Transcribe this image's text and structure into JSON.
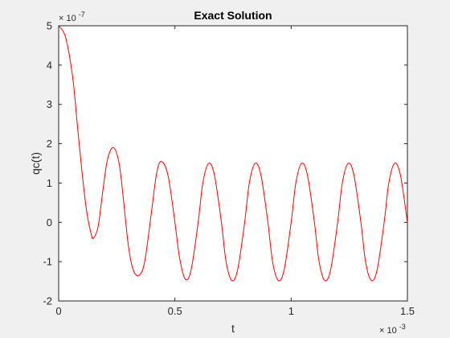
{
  "chart_data": {
    "type": "line",
    "title": "Exact Solution",
    "xlabel": "t",
    "ylabel": "qc(t)",
    "x_multiplier_label": "× 10",
    "x_multiplier_exp": "-3",
    "y_multiplier_label": "× 10",
    "y_multiplier_exp": "-7",
    "xlim": [
      0,
      1.5
    ],
    "ylim": [
      -2,
      5
    ],
    "x_ticks": [
      0,
      0.5,
      1,
      1.5
    ],
    "x_tick_labels": [
      "0",
      "0.5",
      "1",
      "1.5"
    ],
    "y_ticks": [
      -2,
      -1,
      0,
      1,
      2,
      3,
      4,
      5
    ],
    "y_tick_labels": [
      "-2",
      "-1",
      "0",
      "1",
      "2",
      "3",
      "4",
      "5"
    ],
    "grid": false,
    "line_color": "#ff0000",
    "series": [
      {
        "x": [
          0,
          0.03,
          0.06,
          0.08,
          0.1,
          0.12,
          0.14,
          0.15,
          0.17,
          0.19,
          0.21,
          0.235,
          0.26,
          0.28,
          0.3,
          0.32,
          0.345,
          0.37,
          0.4,
          0.42,
          0.44,
          0.47,
          0.5,
          0.52,
          0.545,
          0.57,
          0.6,
          0.62,
          0.645,
          0.67,
          0.7,
          0.72,
          0.745,
          0.77,
          0.8,
          0.82,
          0.845,
          0.87,
          0.9,
          0.92,
          0.945,
          0.97,
          1.0,
          1.02,
          1.045,
          1.07,
          1.1,
          1.12,
          1.145,
          1.17,
          1.2,
          1.22,
          1.245,
          1.27,
          1.3,
          1.32,
          1.345,
          1.37,
          1.4,
          1.42,
          1.445,
          1.47,
          1.5
        ],
        "y": [
          5.0,
          4.7,
          3.7,
          2.5,
          1.3,
          0.3,
          -0.3,
          -0.4,
          -0.1,
          0.8,
          1.6,
          1.9,
          1.5,
          0.5,
          -0.6,
          -1.2,
          -1.35,
          -1.0,
          0.3,
          1.2,
          1.55,
          1.2,
          0.0,
          -0.9,
          -1.45,
          -1.2,
          0.0,
          1.0,
          1.5,
          1.2,
          0.0,
          -1.0,
          -1.48,
          -1.2,
          0.0,
          1.0,
          1.5,
          1.2,
          0.0,
          -1.0,
          -1.48,
          -1.2,
          0.0,
          1.0,
          1.5,
          1.2,
          0.0,
          -1.0,
          -1.48,
          -1.2,
          0.0,
          1.0,
          1.5,
          1.2,
          0.0,
          -1.0,
          -1.48,
          -1.2,
          0.0,
          1.0,
          1.5,
          1.2,
          0.0
        ]
      }
    ]
  }
}
